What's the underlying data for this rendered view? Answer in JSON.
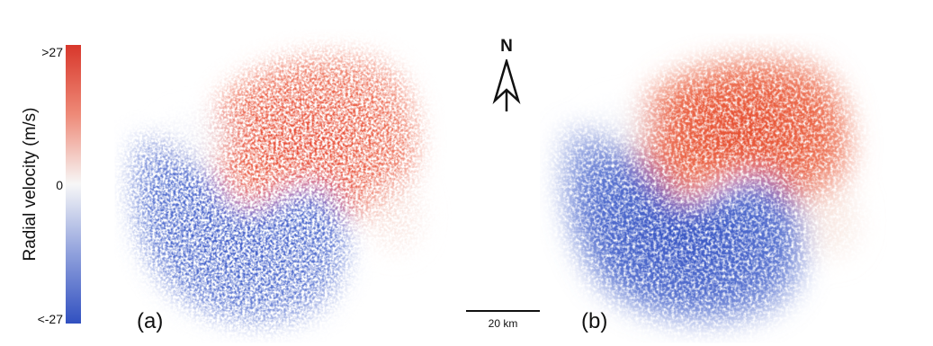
{
  "colorbar": {
    "title": "Radial velocity (m/s)",
    "max_label": ">27",
    "mid_label": "0",
    "min_label": "<-27",
    "max_value": 27,
    "min_value": -27,
    "colors": {
      "positive": "#d8372b",
      "zero": "#f7f7f7",
      "negative": "#3150c0"
    }
  },
  "panels": [
    {
      "id": "a",
      "label": "(a)",
      "style": "noisy-observed"
    },
    {
      "id": "b",
      "label": "(b)",
      "style": "smooth-fitted"
    }
  ],
  "compass": {
    "letter": "N",
    "icon": "north-arrow-icon"
  },
  "scale_bar": {
    "label": "20 km",
    "length_km": 20
  }
}
